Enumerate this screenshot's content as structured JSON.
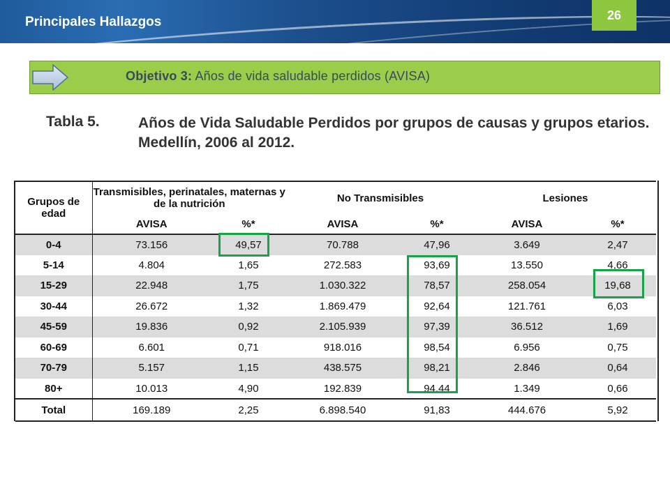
{
  "header": {
    "title": "Principales Hallazgos",
    "slide_number": "26"
  },
  "objective": {
    "label": "Objetivo 3:",
    "text": "Años de vida saludable perdidos (AVISA)"
  },
  "caption": {
    "label": "Tabla 5.",
    "text": "Años de Vida Saludable Perdidos por grupos de causas y grupos etarios. Medellín, 2006 al 2012."
  },
  "table": {
    "group_header": "Grupos de edad",
    "groups": [
      "Transmisibles, perinatales, maternas y de la nutrición",
      "No Transmisibles",
      "Lesiones"
    ],
    "subheaders": [
      "AVISA",
      "%*",
      "AVISA",
      "%*",
      "AVISA",
      "%*"
    ],
    "rows": [
      {
        "age": "0-4",
        "cells": [
          "73.156",
          "49,57",
          "70.788",
          "47,96",
          "3.649",
          "2,47"
        ]
      },
      {
        "age": "5-14",
        "cells": [
          "4.804",
          "1,65",
          "272.583",
          "93,69",
          "13.550",
          "4,66"
        ]
      },
      {
        "age": "15-29",
        "cells": [
          "22.948",
          "1,75",
          "1.030.322",
          "78,57",
          "258.054",
          "19,68"
        ]
      },
      {
        "age": "30-44",
        "cells": [
          "26.672",
          "1,32",
          "1.869.479",
          "92,64",
          "121.761",
          "6,03"
        ]
      },
      {
        "age": "45-59",
        "cells": [
          "19.836",
          "0,92",
          "2.105.939",
          "97,39",
          "36.512",
          "1,69"
        ]
      },
      {
        "age": "60-69",
        "cells": [
          "6.601",
          "0,71",
          "918.016",
          "98,54",
          "6.956",
          "0,75"
        ]
      },
      {
        "age": "70-79",
        "cells": [
          "5.157",
          "1,15",
          "438.575",
          "98,21",
          "2.846",
          "0,64"
        ]
      },
      {
        "age": "80+",
        "cells": [
          "10.013",
          "4,90",
          "192.839",
          "94,44",
          "1.349",
          "0,66"
        ]
      }
    ],
    "total": {
      "age": "Total",
      "cells": [
        "169.189",
        "2,25",
        "6.898.540",
        "91,83",
        "444.676",
        "5,92"
      ]
    }
  },
  "colors": {
    "header_blue": "#1c4f8c",
    "accent_green": "#8dc63f",
    "objective_bar": "#9bcd4a",
    "highlight_box": "#18a34a",
    "row_shade": "#dcdcdc"
  }
}
